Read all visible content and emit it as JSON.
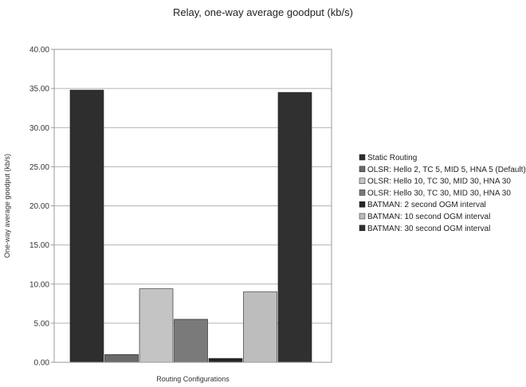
{
  "chart_data": {
    "type": "bar",
    "title": "Relay, one-way average goodput (kb/s)",
    "xlabel": "Routing Configurations",
    "ylabel": "One-way average goodput (kb/s)",
    "ylim": [
      0,
      40
    ],
    "yticks": [
      "0.00",
      "5.00",
      "10.00",
      "15.00",
      "20.00",
      "25.00",
      "30.00",
      "35.00",
      "40.00"
    ],
    "grid": true,
    "legend_position": "right",
    "series": [
      {
        "name": "Static Routing",
        "values": [
          34.8
        ],
        "color": "#2e2e2e"
      },
      {
        "name": "OLSR: Hello 2, TC 5, MID 5, HNA 5 (Default)",
        "values": [
          1.0
        ],
        "color": "#6a6a6a"
      },
      {
        "name": "OLSR: Hello 10, TC 30, MID 30, HNA 30",
        "values": [
          9.4
        ],
        "color": "#c4c4c4"
      },
      {
        "name": "OLSR: Hello 30, TC 30, MID 30, HNA 30",
        "values": [
          5.5
        ],
        "color": "#7a7a7a"
      },
      {
        "name": "BATMAN: 2 second OGM interval",
        "values": [
          0.5
        ],
        "color": "#262626"
      },
      {
        "name": "BATMAN: 10 second OGM interval",
        "values": [
          9.0
        ],
        "color": "#bdbdbd"
      },
      {
        "name": "BATMAN: 30 second OGM interval",
        "values": [
          34.5
        ],
        "color": "#303030"
      }
    ]
  }
}
